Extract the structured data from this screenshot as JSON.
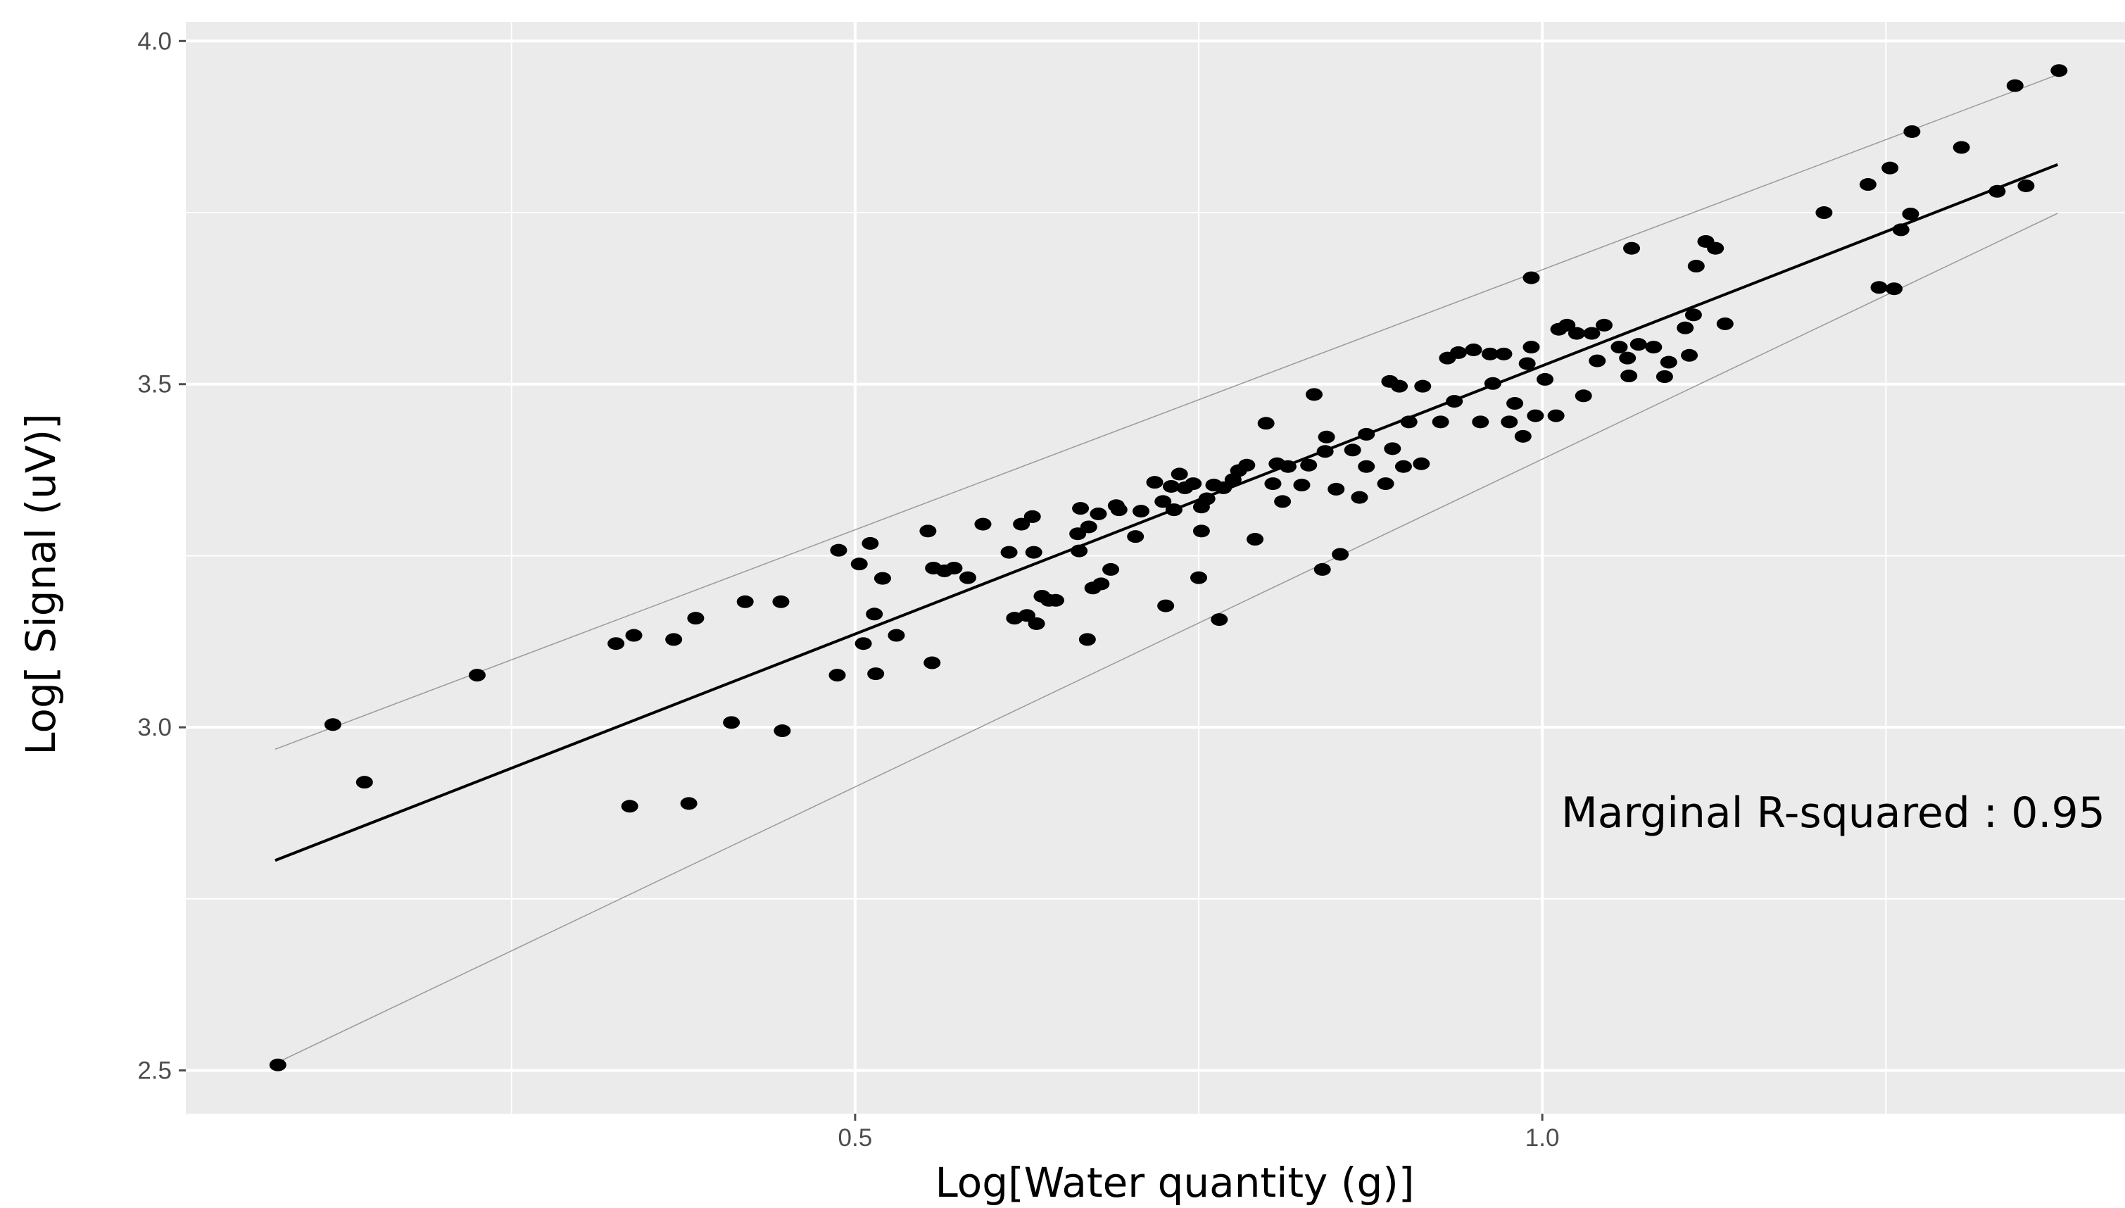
{
  "chart_data": {
    "type": "scatter",
    "x_label": "Log[Water quantity (g)]",
    "y_label": "Log[ Signal (uV)]",
    "annotation": "Marginal R-squared : 0.95",
    "xlim": [
      0.013,
      1.424
    ],
    "ylim": [
      2.437,
      4.028
    ],
    "xticks": [
      0.5,
      {
        "value": 1,
        "label": "1.0"
      }
    ],
    "yticks": [
      2.5,
      {
        "value": 3,
        "label": "3.0"
      },
      3.5,
      {
        "value": 4,
        "label": "4.0"
      }
    ],
    "x_minor_grid": [
      0.25,
      0.75,
      1.25
    ],
    "y_minor_grid": [
      2.75,
      3.25,
      3.75
    ],
    "grid": true,
    "panel_color": "#ebebeb",
    "color": "#000000",
    "x": [
      0.08,
      0.12,
      0.143,
      0.225,
      0.326,
      0.339,
      0.336,
      0.368,
      0.379,
      0.384,
      0.41,
      0.42,
      0.446,
      0.447,
      0.487,
      0.488,
      0.503,
      0.506,
      0.511,
      0.514,
      0.515,
      0.52,
      0.53,
      0.553,
      0.556,
      0.557,
      0.565,
      0.572,
      0.582,
      0.593,
      0.612,
      0.616,
      0.621,
      0.625,
      0.629,
      0.63,
      0.632,
      0.636,
      0.641,
      0.646,
      0.662,
      0.663,
      0.664,
      0.669,
      0.67,
      0.673,
      0.677,
      0.679,
      0.686,
      0.69,
      0.692,
      0.704,
      0.708,
      0.718,
      0.724,
      0.726,
      0.73,
      0.732,
      0.736,
      0.74,
      0.746,
      0.75,
      0.752,
      0.752,
      0.756,
      0.761,
      0.765,
      0.768,
      0.775,
      0.779,
      0.785,
      0.791,
      0.799,
      0.804,
      0.807,
      0.811,
      0.815,
      0.825,
      0.83,
      0.834,
      0.84,
      0.842,
      0.843,
      0.85,
      0.853,
      0.862,
      0.867,
      0.872,
      0.872,
      0.886,
      0.889,
      0.891,
      0.896,
      0.899,
      0.903,
      0.912,
      0.913,
      0.926,
      0.931,
      0.936,
      0.939,
      0.95,
      0.955,
      0.962,
      0.964,
      0.972,
      0.976,
      0.98,
      0.986,
      0.989,
      0.992,
      0.992,
      0.995,
      1.002,
      1.01,
      1.012,
      1.018,
      1.025,
      1.03,
      1.036,
      1.04,
      1.045,
      1.056,
      1.062,
      1.063,
      1.065,
      1.07,
      1.081,
      1.089,
      1.092,
      1.104,
      1.107,
      1.11,
      1.112,
      1.119,
      1.126,
      1.133,
      1.205,
      1.237,
      1.245,
      1.253,
      1.256,
      1.261,
      1.268,
      1.269,
      1.305,
      1.331,
      1.344,
      1.352,
      1.376
    ],
    "y": [
      2.508,
      3.004,
      2.92,
      3.076,
      3.122,
      3.134,
      2.885,
      3.128,
      2.889,
      3.159,
      3.007,
      3.183,
      3.183,
      2.995,
      3.076,
      3.258,
      3.238,
      3.122,
      3.268,
      3.165,
      3.078,
      3.217,
      3.134,
      3.286,
      3.094,
      3.232,
      3.228,
      3.232,
      3.218,
      3.296,
      3.255,
      3.159,
      3.296,
      3.163,
      3.307,
      3.255,
      3.151,
      3.191,
      3.185,
      3.185,
      3.282,
      3.257,
      3.319,
      3.128,
      3.292,
      3.203,
      3.311,
      3.209,
      3.23,
      3.323,
      3.317,
      3.278,
      3.315,
      3.357,
      3.329,
      3.177,
      3.351,
      3.317,
      3.369,
      3.349,
      3.355,
      3.218,
      3.321,
      3.286,
      3.333,
      3.353,
      3.157,
      3.349,
      3.361,
      3.374,
      3.382,
      3.274,
      3.443,
      3.355,
      3.384,
      3.329,
      3.38,
      3.353,
      3.382,
      3.485,
      3.23,
      3.402,
      3.423,
      3.347,
      3.252,
      3.404,
      3.335,
      3.427,
      3.38,
      3.355,
      3.504,
      3.406,
      3.497,
      3.38,
      3.445,
      3.384,
      3.497,
      3.445,
      3.538,
      3.475,
      3.546,
      3.55,
      3.445,
      3.544,
      3.501,
      3.544,
      3.445,
      3.472,
      3.424,
      3.53,
      3.655,
      3.554,
      3.454,
      3.507,
      3.454,
      3.58,
      3.586,
      3.574,
      3.483,
      3.574,
      3.534,
      3.586,
      3.554,
      3.538,
      3.512,
      3.698,
      3.558,
      3.554,
      3.511,
      3.532,
      3.582,
      3.542,
      3.601,
      3.672,
      3.708,
      3.698,
      3.588,
      3.75,
      3.791,
      3.641,
      3.815,
      3.639,
      3.725,
      3.748,
      3.868,
      3.845,
      3.781,
      3.935,
      3.789,
      3.957
    ],
    "lines": [
      {
        "x": [
          0.078,
          1.375
        ],
        "y": [
          2.806,
          3.82
        ],
        "color": "#000000",
        "width": 4
      },
      {
        "x": [
          0.078,
          1.375
        ],
        "y": [
          2.968,
          3.951
        ],
        "color": "#9a9a9a",
        "width": 1.5
      },
      {
        "x": [
          0.078,
          1.375
        ],
        "y": [
          2.51,
          3.749
        ],
        "color": "#9a9a9a",
        "width": 1.5
      }
    ]
  }
}
